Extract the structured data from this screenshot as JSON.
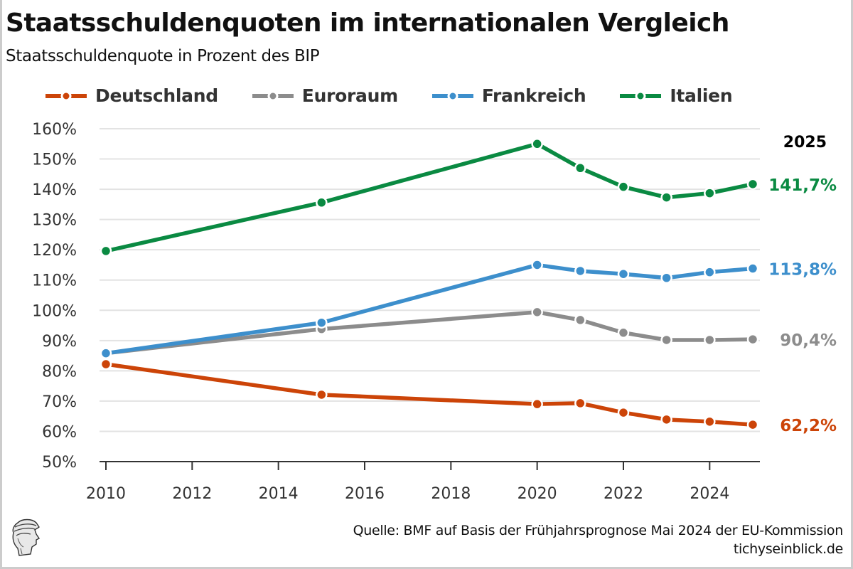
{
  "header": {
    "title": "Staatsschuldenquoten im internationalen Vergleich",
    "subtitle": "Staatsschuldenquote in Prozent des BIP"
  },
  "legend": [
    {
      "label": "Deutschland",
      "color": "#cc4408"
    },
    {
      "label": "Euroraum",
      "color": "#8c8c8c"
    },
    {
      "label": "Frankreich",
      "color": "#3d8fcc"
    },
    {
      "label": "Italien",
      "color": "#0a8a42"
    }
  ],
  "footer": {
    "source": "Quelle: BMF auf Basis der Frühjahrsprognose Mai 2024 der EU-Kommission",
    "site": "tichyseinblick.de",
    "logo_icon": "greek-head-logo-icon"
  },
  "chart_data": {
    "type": "line",
    "title": "Staatsschuldenquoten im internationalen Vergleich",
    "subtitle": "Staatsschuldenquote in Prozent des BIP",
    "xlabel": "",
    "ylabel": "",
    "x": [
      2010,
      2015,
      2020,
      2021,
      2022,
      2023,
      2024,
      2025
    ],
    "xlim": [
      2010,
      2025.15
    ],
    "ylim": [
      50,
      160
    ],
    "x_ticks": [
      "2010",
      "2012",
      "2014",
      "2016",
      "2018",
      "2020",
      "2022",
      "2024"
    ],
    "y_ticks": [
      "50%",
      "60%",
      "70%",
      "80%",
      "90%",
      "100%",
      "110%",
      "120%",
      "130%",
      "140%",
      "150%",
      "160%"
    ],
    "grid": "horizontal",
    "legend_position": "top",
    "end_label_header": "2025",
    "series": [
      {
        "name": "Deutschland",
        "color": "#cc4408",
        "values": [
          82.2,
          72.1,
          69.0,
          69.3,
          66.2,
          63.9,
          63.2,
          62.2
        ],
        "end_label": "62,2%"
      },
      {
        "name": "Euroraum",
        "color": "#8c8c8c",
        "values": [
          85.8,
          93.8,
          99.4,
          96.8,
          92.6,
          90.2,
          90.2,
          90.4
        ],
        "end_label": "90,4%"
      },
      {
        "name": "Frankreich",
        "color": "#3d8fcc",
        "values": [
          85.8,
          95.9,
          115.0,
          113.0,
          112.0,
          110.7,
          112.6,
          113.8
        ],
        "end_label": "113,8%"
      },
      {
        "name": "Italien",
        "color": "#0a8a42",
        "values": [
          119.6,
          135.6,
          155.0,
          147.0,
          140.8,
          137.3,
          138.7,
          141.7
        ],
        "end_label": "141,7%"
      }
    ]
  }
}
